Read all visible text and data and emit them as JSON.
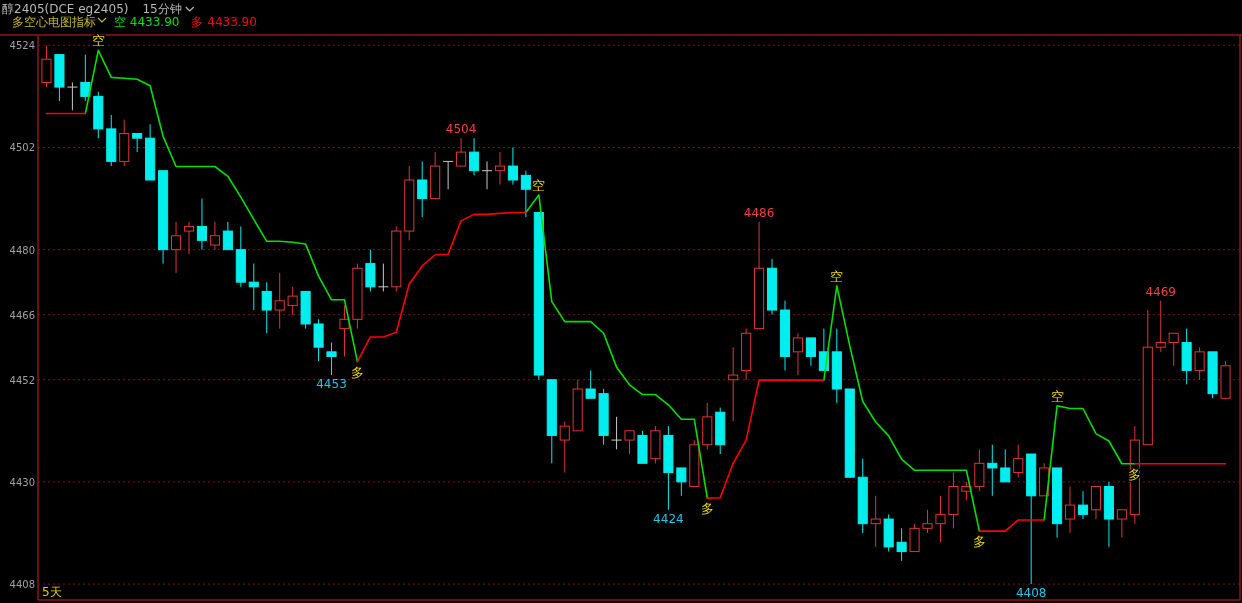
{
  "chart_data": {
    "type": "candlestick",
    "title": "醇2405(DCE eg2405)",
    "subtitle": "15分钟",
    "legend_title": "多空心电图指标",
    "legend": "top left",
    "grid": "y",
    "ylim": [
      4405,
      4526
    ],
    "yticks": [
      4524,
      4502,
      4480,
      4466,
      4452,
      4430,
      4408
    ],
    "tick_labels": "y",
    "categories": [
      null,
      null,
      null,
      null,
      null,
      null,
      null,
      null,
      null,
      null,
      null,
      null,
      null,
      null,
      null,
      null,
      null,
      null,
      null,
      null,
      null,
      null,
      null,
      null,
      null,
      null,
      null,
      null,
      null,
      null,
      null,
      null,
      null,
      null,
      null,
      null,
      null,
      null,
      null,
      null,
      null,
      null,
      null,
      null,
      null,
      null,
      null,
      null,
      null,
      null,
      null,
      null,
      null,
      null,
      null,
      null,
      null,
      null,
      null,
      null,
      null,
      null,
      null,
      null,
      null,
      null,
      null,
      null,
      null,
      null,
      null,
      null,
      null,
      null,
      null,
      null,
      null,
      null,
      null,
      null,
      null,
      null,
      null,
      null,
      null,
      null,
      null,
      null,
      null,
      null,
      null,
      null
    ],
    "ohlc": [
      [
        4516,
        4524,
        4515,
        4521
      ],
      [
        4522,
        4522,
        4512,
        4515
      ],
      [
        4515,
        4516,
        4510,
        4515
      ],
      [
        4516,
        4522,
        4512,
        4513
      ],
      [
        4513,
        4514,
        4504,
        4506
      ],
      [
        4506,
        4509,
        4498,
        4499
      ],
      [
        4499,
        4508,
        4498,
        4505
      ],
      [
        4505,
        4505,
        4501,
        4504
      ],
      [
        4504,
        4507,
        4495,
        4495
      ],
      [
        4497,
        4497,
        4477,
        4480
      ],
      [
        4480,
        4486,
        4475,
        4483
      ],
      [
        4484,
        4486,
        4479,
        4485
      ],
      [
        4485,
        4491,
        4480,
        4482
      ],
      [
        4481,
        4486,
        4480,
        4483
      ],
      [
        4484,
        4486,
        4480,
        4480
      ],
      [
        4480,
        4485,
        4472,
        4473
      ],
      [
        4473,
        4477,
        4467,
        4472
      ],
      [
        4471,
        4473,
        4462,
        4467
      ],
      [
        4467,
        4475,
        4463,
        4469
      ],
      [
        4468,
        4472,
        4466,
        4470
      ],
      [
        4471,
        4471,
        4463,
        4464
      ],
      [
        4464,
        4465,
        4456,
        4459
      ],
      [
        4458,
        4460,
        4453,
        4457
      ],
      [
        4463,
        4468,
        4457,
        4465
      ],
      [
        4465,
        4477,
        4463,
        4476
      ],
      [
        4477,
        4480,
        4471,
        4472
      ],
      [
        4472,
        4477,
        4471,
        4472
      ],
      [
        4472,
        4485,
        4471,
        4484
      ],
      [
        4484,
        4498,
        4482,
        4495
      ],
      [
        4495,
        4499,
        4487,
        4491
      ],
      [
        4491,
        4501,
        4491,
        4498
      ],
      [
        4499,
        4499,
        4493,
        4499
      ],
      [
        4498,
        4504,
        4498,
        4501
      ],
      [
        4501,
        4504,
        4496,
        4497
      ],
      [
        4497,
        4499,
        4493,
        4497
      ],
      [
        4497,
        4501,
        4494,
        4498
      ],
      [
        4498,
        4502,
        4494,
        4495
      ],
      [
        4496,
        4497,
        4487,
        4493
      ],
      [
        4488,
        4488,
        4452,
        4453
      ],
      [
        4452,
        4452,
        4434,
        4440
      ],
      [
        4439,
        4443,
        4432,
        4442
      ],
      [
        4441,
        4452,
        4441,
        4450
      ],
      [
        4450,
        4454,
        4448,
        4448
      ],
      [
        4449,
        4450,
        4438,
        4440
      ],
      [
        4439,
        4444,
        4437,
        4439
      ],
      [
        4439,
        4441,
        4436,
        4441
      ],
      [
        4440,
        4441,
        4434,
        4434
      ],
      [
        4435,
        4442,
        4434,
        4441
      ],
      [
        4440,
        4442,
        4424,
        4432
      ],
      [
        4433,
        4433,
        4427,
        4430
      ],
      [
        4429,
        4439,
        4429,
        4438
      ],
      [
        4438,
        4447,
        4437,
        4444
      ],
      [
        4445,
        4446,
        4436,
        4438
      ],
      [
        4452,
        4459,
        4443,
        4453
      ],
      [
        4454,
        4463,
        4452,
        4462
      ],
      [
        4463,
        4486,
        4463,
        4476
      ],
      [
        4476,
        4478,
        4466,
        4467
      ],
      [
        4467,
        4469,
        4454,
        4457
      ],
      [
        4458,
        4462,
        4453,
        4461
      ],
      [
        4461,
        4461,
        4455,
        4457
      ],
      [
        4458,
        4463,
        4454,
        4454
      ],
      [
        4458,
        4463,
        4447,
        4450
      ],
      [
        4450,
        4450,
        4431,
        4431
      ],
      [
        4431,
        4435,
        4419,
        4421
      ],
      [
        4421,
        4427,
        4416,
        4422
      ],
      [
        4422,
        4423,
        4415,
        4416
      ],
      [
        4417,
        4420,
        4413,
        4415
      ],
      [
        4415,
        4421,
        4415,
        4420
      ],
      [
        4420,
        4424,
        4419,
        4421
      ],
      [
        4421,
        4427,
        4417,
        4423
      ],
      [
        4423,
        4432,
        4420,
        4429
      ],
      [
        4428,
        4430,
        4426,
        4429
      ],
      [
        4429,
        4437,
        4428,
        4434
      ],
      [
        4434,
        4438,
        4427,
        4433
      ],
      [
        4433,
        4437,
        4430,
        4430
      ],
      [
        4432,
        4438,
        4431,
        4435
      ],
      [
        4436,
        4436,
        4408,
        4427
      ],
      [
        4427,
        4434,
        4427,
        4433
      ],
      [
        4433,
        4433,
        4418,
        4421
      ],
      [
        4422,
        4429,
        4419,
        4425
      ],
      [
        4425,
        4428,
        4422,
        4423
      ],
      [
        4424,
        4429,
        4422,
        4429
      ],
      [
        4429,
        4430,
        4416,
        4422
      ],
      [
        4422,
        4424,
        4418,
        4424
      ],
      [
        4423,
        4442,
        4421,
        4439
      ],
      [
        4438,
        4467,
        4438,
        4459
      ],
      [
        4459,
        4469,
        4458,
        4460
      ],
      [
        4460,
        4462,
        4455,
        4462
      ],
      [
        4460,
        4463,
        4451,
        4454
      ],
      [
        4454,
        4459,
        4452,
        4458
      ],
      [
        4458,
        4458,
        4448,
        4449
      ],
      [
        4448,
        4456,
        4448,
        4455
      ]
    ],
    "value_labels": [
      null,
      null,
      null,
      null,
      null,
      null,
      null,
      null,
      null,
      null,
      null,
      null,
      null,
      null,
      null,
      null,
      null,
      null,
      null,
      null,
      null,
      null,
      "4453",
      null,
      null,
      null,
      null,
      null,
      null,
      null,
      null,
      null,
      "4504",
      null,
      null,
      null,
      null,
      null,
      null,
      null,
      null,
      null,
      null,
      null,
      null,
      null,
      null,
      null,
      "4424",
      null,
      null,
      null,
      null,
      null,
      null,
      "4486",
      null,
      null,
      null,
      null,
      null,
      null,
      null,
      null,
      null,
      null,
      null,
      null,
      null,
      null,
      null,
      null,
      null,
      null,
      null,
      null,
      "4408",
      null,
      null,
      null,
      null,
      null,
      null,
      null,
      null,
      null,
      "4469",
      null,
      null,
      null,
      null,
      null
    ],
    "series": [
      {
        "name": "空 4433.90",
        "type": "line",
        "color": "#00e000",
        "values": [
          null,
          null,
          null,
          4509.3,
          4522.9,
          4517.1,
          4516.9,
          4516.7,
          4515.3,
          4504.4,
          4497.9,
          4497.9,
          4497.9,
          4497.9,
          4495.8,
          4491.3,
          4486.5,
          4481.8,
          4481.8,
          4481.6,
          4481.2,
          4474.3,
          4469.2,
          4469.2,
          4455.9,
          null,
          null,
          null,
          null,
          null,
          null,
          null,
          null,
          null,
          null,
          null,
          null,
          4488,
          4491.8,
          4468.8,
          4464.5,
          4464.5,
          4464.5,
          4462,
          4454.7,
          4450.9,
          4448.8,
          4448.8,
          4446.6,
          4443.5,
          4443.5,
          4426.5,
          null,
          null,
          null,
          null,
          null,
          null,
          null,
          null,
          4451.9,
          4472.2,
          4459.3,
          4447.3,
          4442.9,
          4439.9,
          4434.9,
          4432.5,
          4432.5,
          4432.5,
          4432.5,
          4432.5,
          4419.4,
          null,
          null,
          null,
          null,
          4421.8,
          4446.4,
          4445.8,
          4445.8,
          4440.4,
          4438.8,
          4433.9,
          4433.9,
          null,
          null,
          null,
          null,
          null,
          null,
          null
        ],
        "value_labels": [
          null,
          null,
          null,
          null,
          "空",
          null,
          null,
          null,
          null,
          null,
          null,
          null,
          null,
          null,
          null,
          null,
          null,
          null,
          null,
          null,
          null,
          null,
          null,
          null,
          null,
          null,
          null,
          null,
          null,
          null,
          null,
          null,
          null,
          null,
          null,
          null,
          null,
          null,
          "空",
          null,
          null,
          null,
          null,
          null,
          null,
          null,
          null,
          null,
          null,
          null,
          null,
          null,
          null,
          null,
          null,
          null,
          null,
          null,
          null,
          null,
          null,
          "空",
          null,
          null,
          null,
          null,
          null,
          null,
          null,
          null,
          null,
          null,
          null,
          null,
          null,
          null,
          null,
          null,
          "空",
          null,
          null,
          null,
          null,
          null,
          null,
          null,
          null,
          null,
          null,
          null,
          null,
          null
        ]
      },
      {
        "name": "多 4433.90",
        "type": "line",
        "color": "#ff0000",
        "values": [
          4509.3,
          4509.3,
          4509.3,
          4509.3,
          null,
          null,
          null,
          null,
          null,
          null,
          null,
          null,
          null,
          null,
          null,
          null,
          null,
          null,
          null,
          null,
          null,
          null,
          null,
          null,
          4455.9,
          4461.2,
          4461.2,
          4462.2,
          4472.6,
          4476.5,
          4478.9,
          4479,
          4486.2,
          4487.6,
          4487.6,
          4487.8,
          4488,
          4488,
          null,
          null,
          null,
          null,
          null,
          null,
          null,
          null,
          null,
          null,
          null,
          null,
          null,
          4426.5,
          4426.6,
          4434,
          4439,
          4451.9,
          4451.9,
          4451.9,
          4451.9,
          4451.9,
          4451.9,
          null,
          null,
          null,
          null,
          null,
          null,
          null,
          null,
          null,
          null,
          null,
          4419.4,
          4419.4,
          4419.4,
          4421.8,
          4421.8,
          4421.8,
          null,
          null,
          null,
          null,
          null,
          null,
          4433.9,
          4433.9,
          4433.9,
          4433.9,
          4433.9,
          4433.9,
          4433.9,
          4433.9
        ],
        "value_labels": [
          null,
          null,
          null,
          null,
          null,
          null,
          null,
          null,
          null,
          null,
          null,
          null,
          null,
          null,
          null,
          null,
          null,
          null,
          null,
          null,
          null,
          null,
          null,
          null,
          "多",
          null,
          null,
          null,
          null,
          null,
          null,
          null,
          null,
          null,
          null,
          null,
          null,
          null,
          null,
          null,
          null,
          null,
          null,
          null,
          null,
          null,
          null,
          null,
          null,
          null,
          null,
          "多",
          null,
          null,
          null,
          null,
          null,
          null,
          null,
          null,
          null,
          null,
          null,
          null,
          null,
          null,
          null,
          null,
          null,
          null,
          null,
          null,
          "多",
          null,
          null,
          null,
          null,
          null,
          null,
          null,
          null,
          null,
          null,
          null,
          "多",
          null,
          null,
          null,
          null,
          null,
          null,
          null
        ]
      }
    ],
    "annotations": [
      "5天"
    ]
  }
}
